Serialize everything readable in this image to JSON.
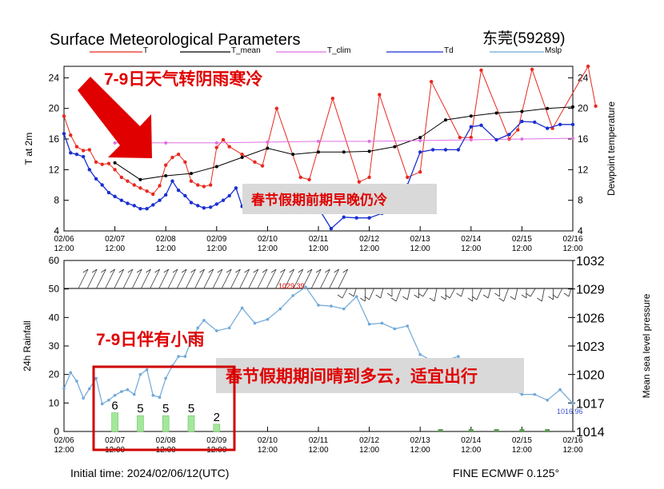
{
  "title": "Surface Meteorological Parameters",
  "station": "东莞(59289)",
  "initial_time": "Initial time: 2024/02/06/12(UTC)",
  "model": "FINE ECMWF 0.125°",
  "annotations": {
    "cold": "7-9日天气转阴雨寒冷",
    "early_cold": "春节假期前期早晚仍冷",
    "rain": "7-9日伴有小雨",
    "travel": "春节假期期间晴到多云，适宜出行"
  },
  "pressure_labels": {
    "max": "1029.39",
    "min": "1016.96"
  },
  "colors": {
    "T": "#e8281e",
    "T_mean": "#000000",
    "T_clim": "#e070e0",
    "Td": "#1a2fd0",
    "Mslp": "#6fa8d8",
    "rain": "#a3e89a",
    "arrow": "#e00000",
    "box": "#d00000"
  },
  "chart_data": [
    {
      "type": "line",
      "title": "Surface Meteorological Parameters",
      "ylabel": "T at 2m",
      "ylabel_right": "Dewpoint temperature",
      "ylim": [
        4,
        25.5
      ],
      "yticks": [
        4,
        8,
        12,
        16,
        20,
        24
      ],
      "xlim": [
        0,
        10
      ],
      "x_ticks": [
        {
          "date": "02/06",
          "time": "12:00"
        },
        {
          "date": "02/07",
          "time": "12:00"
        },
        {
          "date": "02/08",
          "time": "12:00"
        },
        {
          "date": "02/09",
          "time": "12:00"
        },
        {
          "date": "02/10",
          "time": "12:00"
        },
        {
          "date": "02/11",
          "time": "12:00"
        },
        {
          "date": "02/12",
          "time": "12:00"
        },
        {
          "date": "02/13",
          "time": "12:00"
        },
        {
          "date": "02/14",
          "time": "12:00"
        },
        {
          "date": "02/15",
          "time": "12:00"
        },
        {
          "date": "02/16",
          "time": "12:00"
        }
      ],
      "legend": [
        "T",
        "T_mean",
        "T_clim",
        "Td",
        "Mslp"
      ],
      "series": [
        {
          "name": "T",
          "points": [
            [
              0,
              19
            ],
            [
              0.13,
              16.5
            ],
            [
              0.25,
              15
            ],
            [
              0.38,
              14.5
            ],
            [
              0.5,
              14.6
            ],
            [
              0.63,
              13
            ],
            [
              0.75,
              12.7
            ],
            [
              0.88,
              12.8
            ],
            [
              1,
              12
            ],
            [
              1.13,
              11
            ],
            [
              1.25,
              10.5
            ],
            [
              1.38,
              10
            ],
            [
              1.5,
              9.6
            ],
            [
              1.63,
              9.2
            ],
            [
              1.75,
              8.8
            ],
            [
              1.88,
              9.9
            ],
            [
              2,
              12.6
            ],
            [
              2.13,
              13.6
            ],
            [
              2.25,
              14
            ],
            [
              2.38,
              13
            ],
            [
              2.5,
              10.5
            ],
            [
              2.63,
              10
            ],
            [
              2.75,
              9.8
            ],
            [
              2.88,
              10
            ],
            [
              3,
              14.9
            ],
            [
              3.13,
              15.9
            ],
            [
              3.25,
              15
            ],
            [
              3.5,
              14
            ],
            [
              3.75,
              13
            ],
            [
              3.9,
              12.5
            ],
            [
              4.18,
              20
            ],
            [
              4.65,
              11
            ],
            [
              4.82,
              10.7
            ],
            [
              5.28,
              21.3
            ],
            [
              5.8,
              10.4
            ],
            [
              6,
              11
            ],
            [
              6.2,
              21.8
            ],
            [
              6.75,
              11
            ],
            [
              7,
              11.7
            ],
            [
              7.22,
              23.5
            ],
            [
              7.78,
              16.2
            ],
            [
              8,
              16.2
            ],
            [
              8.2,
              25
            ],
            [
              8.75,
              16
            ],
            [
              8.92,
              17.2
            ],
            [
              9.2,
              25.1
            ],
            [
              9.6,
              17.4
            ],
            [
              10.3,
              25.5
            ],
            [
              10.45,
              20.3
            ]
          ]
        },
        {
          "name": "T_mean",
          "points": [
            [
              1,
              12.9
            ],
            [
              1.5,
              10.7
            ],
            [
              2,
              11.2
            ],
            [
              2.5,
              11.5
            ],
            [
              3,
              12.4
            ],
            [
              3.5,
              13.6
            ],
            [
              4,
              14.8
            ],
            [
              4.5,
              14
            ],
            [
              5,
              14.3
            ],
            [
              5.5,
              14.3
            ],
            [
              6,
              14.4
            ],
            [
              6.5,
              15
            ],
            [
              7,
              16.2
            ],
            [
              7.5,
              18.5
            ],
            [
              8,
              19
            ],
            [
              8.5,
              19.4
            ],
            [
              9,
              19.6
            ],
            [
              9.5,
              20
            ],
            [
              10,
              20.2
            ]
          ]
        },
        {
          "name": "T_clim",
          "points": [
            [
              1,
              15.5
            ],
            [
              2,
              15.5
            ],
            [
              3,
              15.5
            ],
            [
              4,
              15.6
            ],
            [
              5,
              15.7
            ],
            [
              6,
              15.7
            ],
            [
              7,
              15.8
            ],
            [
              8,
              15.9
            ],
            [
              9,
              16
            ],
            [
              10,
              16.1
            ]
          ]
        },
        {
          "name": "Td",
          "points": [
            [
              0,
              16.7
            ],
            [
              0.13,
              14.2
            ],
            [
              0.25,
              14
            ],
            [
              0.38,
              13.7
            ],
            [
              0.5,
              12
            ],
            [
              0.63,
              10.8
            ],
            [
              0.75,
              10
            ],
            [
              0.88,
              9
            ],
            [
              1,
              8.5
            ],
            [
              1.13,
              8
            ],
            [
              1.25,
              7.6
            ],
            [
              1.38,
              7.3
            ],
            [
              1.5,
              6.9
            ],
            [
              1.63,
              6.9
            ],
            [
              1.75,
              7.4
            ],
            [
              1.88,
              8
            ],
            [
              2,
              8.7
            ],
            [
              2.13,
              10.5
            ],
            [
              2.25,
              9.3
            ],
            [
              2.38,
              8.6
            ],
            [
              2.5,
              7.7
            ],
            [
              2.63,
              7.3
            ],
            [
              2.75,
              7
            ],
            [
              2.88,
              7.1
            ],
            [
              3,
              7.5
            ],
            [
              3.13,
              8
            ],
            [
              3.25,
              8.6
            ],
            [
              3.38,
              9.6
            ],
            [
              3.5,
              7.2
            ],
            [
              3.75,
              6.7
            ],
            [
              4,
              6.9
            ],
            [
              4.5,
              9
            ],
            [
              4.75,
              7.9
            ],
            [
              5,
              7
            ],
            [
              5.25,
              4.3
            ],
            [
              5.5,
              5.8
            ],
            [
              5.75,
              5.7
            ],
            [
              6,
              5.7
            ],
            [
              6.25,
              6.3
            ],
            [
              6.5,
              8
            ],
            [
              6.75,
              10
            ],
            [
              7,
              14.3
            ],
            [
              7.25,
              14.6
            ],
            [
              7.5,
              14.6
            ],
            [
              7.75,
              14.6
            ],
            [
              8,
              17.6
            ],
            [
              8.2,
              17.8
            ],
            [
              8.5,
              15.9
            ],
            [
              8.75,
              16.6
            ],
            [
              9,
              18.3
            ],
            [
              9.25,
              18.2
            ],
            [
              9.5,
              17.4
            ],
            [
              9.75,
              17.9
            ],
            [
              10,
              17.9
            ]
          ]
        }
      ]
    },
    {
      "type": "bar",
      "ylabel": "24h Rainfall",
      "ylabel_right": "Mean sea level pressure",
      "ylim": [
        0,
        60
      ],
      "yticks": [
        0,
        10,
        20,
        30,
        40,
        50,
        60
      ],
      "pressure_ylim": [
        1014,
        1032
      ],
      "pressure_yticks": [
        1014,
        1017,
        1020,
        1023,
        1026,
        1029,
        1032
      ],
      "rain_bars": [
        {
          "x": 1,
          "value": 6,
          "label": "6"
        },
        {
          "x": 1.5,
          "value": 5,
          "label": "5"
        },
        {
          "x": 2,
          "value": 5,
          "label": "5"
        },
        {
          "x": 2.5,
          "value": 5,
          "label": "5"
        },
        {
          "x": 3,
          "value": 2,
          "label": "2"
        }
      ],
      "mslp": [
        [
          0,
          1018.5
        ],
        [
          0.13,
          1020.2
        ],
        [
          0.25,
          1019.3
        ],
        [
          0.38,
          1017.5
        ],
        [
          0.5,
          1018.5
        ],
        [
          0.63,
          1019.6
        ],
        [
          0.75,
          1016.9
        ],
        [
          0.88,
          1017.3
        ],
        [
          1,
          1017.8
        ],
        [
          1.13,
          1018.2
        ],
        [
          1.25,
          1018.4
        ],
        [
          1.38,
          1017.9
        ],
        [
          1.5,
          1020
        ],
        [
          1.63,
          1020.5
        ],
        [
          1.75,
          1017.8
        ],
        [
          1.88,
          1017.6
        ],
        [
          2,
          1019.6
        ],
        [
          2.13,
          1020.9
        ],
        [
          2.25,
          1021.9
        ],
        [
          2.38,
          1021.9
        ],
        [
          2.5,
          1023.6
        ],
        [
          2.63,
          1024.9
        ],
        [
          2.75,
          1025.7
        ],
        [
          3,
          1024.6
        ],
        [
          3.25,
          1024.9
        ],
        [
          3.5,
          1027
        ],
        [
          3.75,
          1025.4
        ],
        [
          4,
          1025.8
        ],
        [
          4.25,
          1026.9
        ],
        [
          4.5,
          1028.3
        ],
        [
          4.75,
          1029.2
        ],
        [
          5,
          1027.3
        ],
        [
          5.25,
          1027.2
        ],
        [
          5.5,
          1026.9
        ],
        [
          5.75,
          1028.2
        ],
        [
          6,
          1025.3
        ],
        [
          6.25,
          1025.4
        ],
        [
          6.5,
          1024.8
        ],
        [
          6.75,
          1025.1
        ],
        [
          7,
          1022.1
        ],
        [
          7.25,
          1021.4
        ],
        [
          7.5,
          1021.5
        ],
        [
          7.75,
          1021.9
        ],
        [
          8,
          1019.7
        ],
        [
          8.25,
          1019.3
        ],
        [
          8.5,
          1018.8
        ],
        [
          8.75,
          1018.6
        ],
        [
          9,
          1017.9
        ],
        [
          9.25,
          1017.9
        ],
        [
          9.5,
          1017.3
        ],
        [
          9.75,
          1018.4
        ],
        [
          10,
          1016.96
        ]
      ]
    }
  ]
}
